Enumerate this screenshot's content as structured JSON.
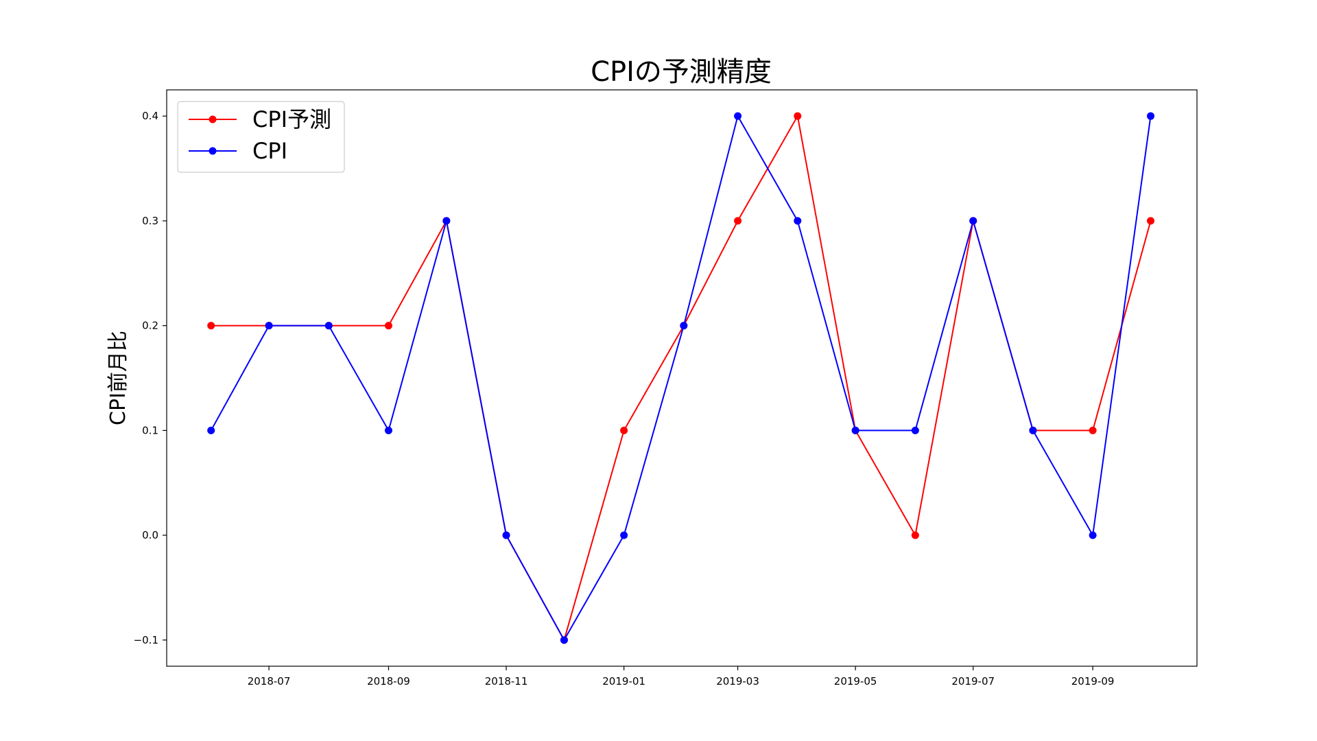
{
  "chart_data": {
    "type": "line",
    "title": "CPIの予測精度",
    "xlabel": "",
    "ylabel": "CPI前月比",
    "x": [
      "2018-06",
      "2018-07",
      "2018-08",
      "2018-09",
      "2018-10",
      "2018-11",
      "2018-12",
      "2019-01",
      "2019-02",
      "2019-03",
      "2019-04",
      "2019-05",
      "2019-06",
      "2019-07",
      "2019-08",
      "2019-09",
      "2019-10"
    ],
    "x_tick_labels": [
      "2018-07",
      "2018-09",
      "2018-11",
      "2019-01",
      "2019-03",
      "2019-05",
      "2019-07",
      "2019-09"
    ],
    "y_tick_labels": [
      "−0.1",
      "0.0",
      "0.1",
      "0.2",
      "0.3",
      "0.4"
    ],
    "y_ticks": [
      -0.1,
      0.0,
      0.1,
      0.2,
      0.3,
      0.4
    ],
    "ylim": [
      -0.125,
      0.425
    ],
    "xlim": [
      "2018-05-09",
      "2019-10-25"
    ],
    "grid": false,
    "legend_position": "upper-left",
    "series": [
      {
        "name": "CPI予測",
        "color": "#ff0000",
        "values": [
          0.2,
          0.2,
          0.2,
          0.2,
          0.3,
          0.0,
          -0.1,
          0.1,
          0.2,
          0.3,
          0.4,
          0.1,
          0.0,
          0.3,
          0.1,
          0.1,
          0.3
        ]
      },
      {
        "name": "CPI",
        "color": "#0000ff",
        "values": [
          0.1,
          0.2,
          0.2,
          0.1,
          0.3,
          0.0,
          -0.1,
          0.0,
          0.2,
          0.4,
          0.3,
          0.1,
          0.1,
          0.3,
          0.1,
          0.0,
          0.4
        ]
      }
    ]
  }
}
